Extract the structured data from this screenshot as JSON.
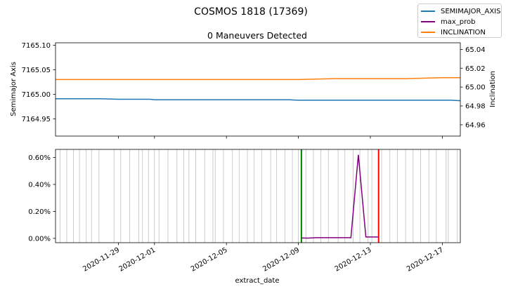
{
  "figure": {
    "suptitle": "COSMOS 1818 (17369)"
  },
  "colors": {
    "semimajor": "#1f77b4",
    "max_prob": "#800080",
    "inclination": "#ff7f0e",
    "green_marker": "#008000",
    "red_marker": "#ff0000",
    "event_lines": "#c0c0c0"
  },
  "legend": {
    "items": [
      {
        "label": "SEMIMAJOR_AXIS",
        "color": "#1f77b4"
      },
      {
        "label": "max_prob",
        "color": "#800080"
      },
      {
        "label": "INCLINATION",
        "color": "#ff7f0e"
      }
    ]
  },
  "chart_data": [
    {
      "type": "line",
      "title": "0 Maneuvers Detected",
      "xlabel": "",
      "ylabel": "Semimajor Axis",
      "y2label": "Inclination",
      "xlim": [
        "2020-11-25T12:00",
        "2020-12-18T00:00"
      ],
      "ylim": [
        7164.915,
        7165.105
      ],
      "y2lim": [
        64.948,
        65.047
      ],
      "yticks": [
        "7165.10",
        "7165.05",
        "7165.00",
        "7164.95"
      ],
      "y2ticks": [
        "65.04",
        "65.02",
        "65.00",
        "64.98",
        "64.96"
      ],
      "series": [
        {
          "name": "SEMIMAJOR_AXIS",
          "axis": "left",
          "x": [
            "2020-11-25T12:00",
            "2020-11-27T12:00",
            "2020-11-28T00:00",
            "2020-11-29T00:00",
            "2020-11-30T00:00",
            "2020-11-30T18:00",
            "2020-12-01T00:00",
            "2020-12-04T00:00",
            "2020-12-08T00:00",
            "2020-12-08T12:00",
            "2020-12-09T00:00",
            "2020-12-12T00:00",
            "2020-12-15T00:00",
            "2020-12-17T12:00",
            "2020-12-18T00:00"
          ],
          "y": [
            7164.991,
            7164.991,
            7164.991,
            7164.99,
            7164.99,
            7164.99,
            7164.989,
            7164.989,
            7164.989,
            7164.989,
            7164.988,
            7164.988,
            7164.988,
            7164.988,
            7164.987
          ]
        },
        {
          "name": "INCLINATION",
          "axis": "right",
          "x": [
            "2020-11-25T12:00",
            "2020-11-28T00:00",
            "2020-12-01T00:00",
            "2020-12-04T00:00",
            "2020-12-07T00:00",
            "2020-12-09T00:00",
            "2020-12-11T00:00",
            "2020-12-13T00:00",
            "2020-12-15T00:00",
            "2020-12-17T00:00",
            "2020-12-18T00:00"
          ],
          "y": [
            65.008,
            65.008,
            65.008,
            65.008,
            65.008,
            65.008,
            65.009,
            65.009,
            65.009,
            65.01,
            65.01
          ]
        }
      ]
    },
    {
      "type": "line",
      "title": "",
      "xlabel": "extract_date",
      "ylabel": "",
      "xlim": [
        "2020-11-25T12:00",
        "2020-12-18T00:00"
      ],
      "ylim": [
        -0.00032,
        0.0066
      ],
      "yticks": [
        "0.00%",
        "0.20%",
        "0.40%",
        "0.60%"
      ],
      "xticks": [
        "2020-11-29",
        "2020-12-01",
        "2020-12-05",
        "2020-12-09",
        "2020-12-13",
        "2020-12-17"
      ],
      "series": [
        {
          "name": "max_prob",
          "x": [
            "2020-12-09T04:00",
            "2020-12-09T12:00",
            "2020-12-10T00:00",
            "2020-12-11T12:00",
            "2020-12-11T22:00",
            "2020-12-12T08:00",
            "2020-12-12T18:00",
            "2020-12-13T11:00"
          ],
          "y": [
            3e-05,
            2e-05,
            5e-05,
            5e-05,
            5e-05,
            0.0062,
            0.0001,
            0.0001
          ]
        }
      ],
      "vlines": [
        {
          "x": "2020-12-09T04:00",
          "color": "#008000"
        },
        {
          "x": "2020-12-13T11:00",
          "color": "#ff0000"
        }
      ],
      "event_lines": [
        "2020-11-25T18:00",
        "2020-11-26T03:00",
        "2020-11-26T12:00",
        "2020-11-26T20:00",
        "2020-11-27T05:00",
        "2020-11-27T12:00",
        "2020-11-27T22:00",
        "2020-11-28T18:00",
        "2020-11-29T03:00",
        "2020-11-29T15:00",
        "2020-11-30T03:00",
        "2020-11-30T08:00",
        "2020-11-30T16:00",
        "2020-12-01T00:00",
        "2020-12-01T06:00",
        "2020-12-01T18:00",
        "2020-12-02T06:00",
        "2020-12-02T15:00",
        "2020-12-02T22:00",
        "2020-12-03T07:00",
        "2020-12-03T19:00",
        "2020-12-04T06:00",
        "2020-12-04T09:00",
        "2020-12-04T20:00",
        "2020-12-05T08:00",
        "2020-12-05T17:00",
        "2020-12-06T04:00",
        "2020-12-06T13:00",
        "2020-12-06T23:00",
        "2020-12-07T11:00",
        "2020-12-07T19:00",
        "2020-12-08T06:00",
        "2020-12-08T16:00",
        "2020-12-09T00:00",
        "2020-12-09T10:00",
        "2020-12-09T20:00",
        "2020-12-10T06:00",
        "2020-12-10T16:00",
        "2020-12-11T05:00",
        "2020-12-11T14:00",
        "2020-12-12T01:00",
        "2020-12-12T10:00",
        "2020-12-12T21:00",
        "2020-12-13T02:00",
        "2020-12-13T15:00",
        "2020-12-14T02:00",
        "2020-12-14T12:00",
        "2020-12-14T23:00",
        "2020-12-15T09:00",
        "2020-12-15T19:00",
        "2020-12-16T06:00",
        "2020-12-16T16:00",
        "2020-12-17T05:00",
        "2020-12-17T08:00",
        "2020-12-17T20:00"
      ]
    }
  ]
}
